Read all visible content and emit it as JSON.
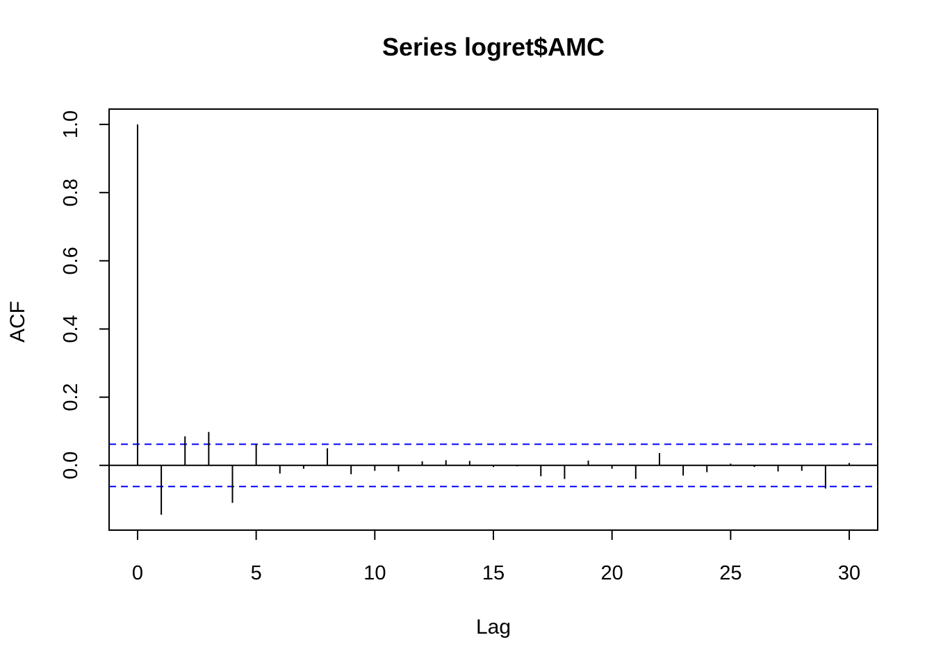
{
  "chart_data": {
    "type": "bar",
    "title": "Series  logret$AMC",
    "xlabel": "Lag",
    "ylabel": "ACF",
    "xlim": [
      -1.2,
      31.2
    ],
    "ylim": [
      -0.19,
      1.045
    ],
    "x_ticks": [
      "0",
      "5",
      "10",
      "15",
      "20",
      "25",
      "30"
    ],
    "y_ticks": [
      "0.0",
      "0.2",
      "0.4",
      "0.6",
      "0.8",
      "1.0"
    ],
    "lags": [
      0,
      1,
      2,
      3,
      4,
      5,
      6,
      7,
      8,
      9,
      10,
      11,
      12,
      13,
      14,
      15,
      16,
      17,
      18,
      19,
      20,
      21,
      22,
      23,
      24,
      25,
      26,
      27,
      28,
      29,
      30
    ],
    "values": [
      1.0,
      -0.145,
      0.085,
      0.098,
      -0.11,
      0.062,
      -0.024,
      -0.01,
      0.05,
      -0.026,
      -0.016,
      -0.018,
      0.012,
      0.015,
      0.013,
      -0.005,
      -0.003,
      -0.032,
      -0.04,
      0.014,
      -0.01,
      -0.04,
      0.036,
      -0.03,
      -0.02,
      0.005,
      -0.005,
      -0.018,
      -0.016,
      -0.068,
      0.007
    ],
    "confidence_bound": 0.062,
    "grid": false,
    "colors": {
      "bars": "#000000",
      "bounds": "#0000ff",
      "zero_line": "#000000"
    }
  }
}
